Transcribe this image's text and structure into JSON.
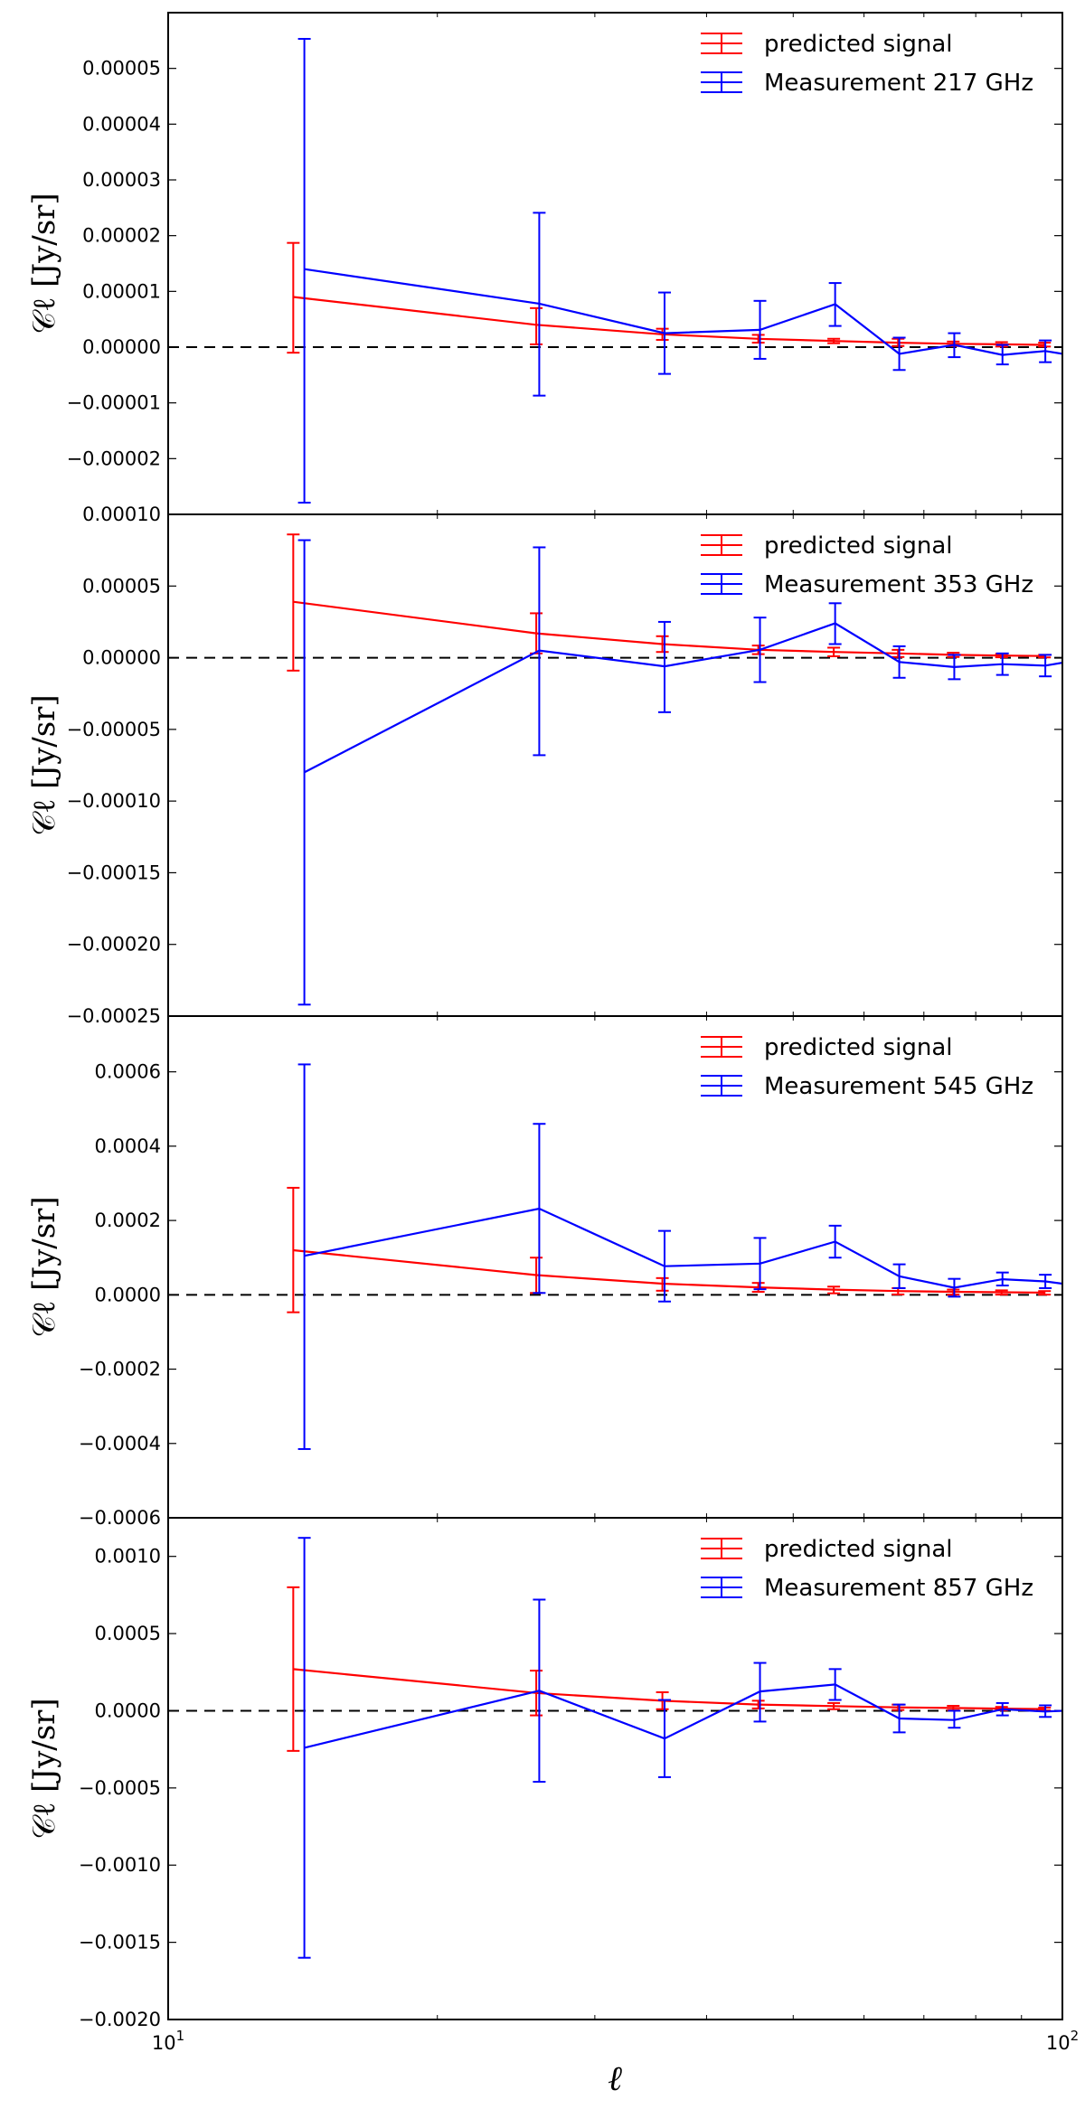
{
  "figure": {
    "xlabel": "ℓ",
    "xscale": "log",
    "xlim": [
      10,
      100
    ],
    "x_tick_labels": [
      {
        "base": "10",
        "exp": "1",
        "value": 10
      },
      {
        "base": "10",
        "exp": "2",
        "value": 100
      }
    ],
    "colors": {
      "predicted": "#ff0000",
      "measurement": "#0000ff",
      "zero_line": "#000000"
    }
  },
  "chart_data": [
    {
      "type": "line",
      "title": "",
      "ylabel": "𝒞ℓ [Jy/sr]",
      "ylim": [
        -3e-05,
        6e-05
      ],
      "y_ticks": [
        -2e-05,
        -1e-05,
        0.0,
        1e-05,
        2e-05,
        3e-05,
        4e-05,
        5e-05
      ],
      "y_tick_labels": [
        "−0.00002",
        "−0.00001",
        "0.00000",
        "0.00001",
        "0.00002",
        "0.00003",
        "0.00004",
        "0.00005"
      ],
      "bottom_tick_label": "0.00010",
      "legend": [
        "predicted signal",
        "Measurement 217 GHz"
      ],
      "legend_position": "top-right",
      "series": [
        {
          "name": "predicted signal",
          "x": [
            13.8,
            25.8,
            35.7,
            45.7,
            55.5,
            65.5,
            75.5,
            85.5,
            95.5
          ],
          "values": [
            9e-06,
            4e-06,
            2.3e-06,
            1.5e-06,
            1.1e-06,
            8e-07,
            6e-07,
            5e-07,
            4e-07
          ],
          "err_low": [
            -1e-06,
            5e-07,
            1.3e-06,
            8e-07,
            7e-07,
            2e-07,
            2e-07,
            1e-07,
            1e-07
          ],
          "err_high": [
            1.87e-05,
            7e-06,
            3.3e-06,
            2.2e-06,
            1.5e-06,
            1.5e-06,
            1e-06,
            9e-07,
            8e-07
          ]
        },
        {
          "name": "Measurement 217 GHz",
          "x": [
            14.2,
            26.0,
            35.9,
            45.9,
            55.7,
            65.7,
            75.7,
            85.7,
            95.7,
            100
          ],
          "values": [
            1.4e-05,
            7.8e-06,
            2.5e-06,
            3.1e-06,
            7.7e-06,
            -1.2e-06,
            4e-07,
            -1.4e-06,
            -7e-07,
            -1.2e-06
          ],
          "err_low": [
            -2.79e-05,
            -8.7e-06,
            -4.8e-06,
            -2.1e-06,
            3.8e-06,
            -4.1e-06,
            -1.8e-06,
            -3.1e-06,
            -2.7e-06,
            null
          ],
          "err_high": [
            5.53e-05,
            2.41e-05,
            9.8e-06,
            8.3e-06,
            1.15e-05,
            1.7e-06,
            2.5e-06,
            4e-07,
            1.2e-06,
            null
          ]
        }
      ]
    },
    {
      "type": "line",
      "title": "",
      "ylabel": "𝒞ℓ [Jy/sr]",
      "ylim": [
        -0.00025,
        0.0001
      ],
      "y_ticks": [
        -0.00025,
        -0.0002,
        -0.00015,
        -0.0001,
        -5e-05,
        0.0,
        5e-05
      ],
      "y_tick_labels": [
        "−0.00025",
        "−0.00020",
        "−0.00015",
        "−0.00010",
        "−0.00005",
        "0.00000",
        "0.00005"
      ],
      "legend": [
        "predicted signal",
        "Measurement 353 GHz"
      ],
      "legend_position": "top-right",
      "series": [
        {
          "name": "predicted signal",
          "x": [
            13.8,
            25.8,
            35.7,
            45.7,
            55.5,
            65.5,
            75.5,
            85.5,
            95.5
          ],
          "values": [
            3.9e-05,
            1.7e-05,
            9.5e-06,
            5.5e-06,
            4e-06,
            3e-06,
            2e-06,
            1.5e-06,
            1.2e-06
          ],
          "err_low": [
            -9e-06,
            3e-06,
            4e-06,
            2.5e-06,
            1e-06,
            5e-07,
            5e-07,
            3e-07,
            2e-07
          ],
          "err_high": [
            8.6e-05,
            3.1e-05,
            1.5e-05,
            8.5e-06,
            7e-06,
            5.5e-06,
            3.5e-06,
            2.7e-06,
            2e-06
          ]
        },
        {
          "name": "Measurement 353 GHz",
          "x": [
            14.2,
            26.0,
            35.9,
            45.9,
            55.7,
            65.7,
            75.7,
            85.7,
            95.7,
            100
          ],
          "values": [
            -8e-05,
            5e-06,
            -6e-06,
            5.5e-06,
            2.4e-05,
            -3e-06,
            -6.5e-06,
            -4.5e-06,
            -5.5e-06,
            -3.5e-06
          ],
          "err_low": [
            -0.000242,
            -6.8e-05,
            -3.8e-05,
            -1.7e-05,
            9.5e-06,
            -1.4e-05,
            -1.5e-05,
            -1.2e-05,
            -1.3e-05,
            null
          ],
          "err_high": [
            8.2e-05,
            7.7e-05,
            2.5e-05,
            2.8e-05,
            3.8e-05,
            8e-06,
            2e-06,
            3e-06,
            2e-06,
            null
          ]
        }
      ]
    },
    {
      "type": "line",
      "title": "",
      "ylabel": "𝒞ℓ [Jy/sr]",
      "ylim": [
        -0.0006,
        0.00075
      ],
      "y_ticks": [
        -0.0006,
        -0.0004,
        -0.0002,
        0.0,
        0.0002,
        0.0004,
        0.0006
      ],
      "y_tick_labels": [
        "−0.0006",
        "−0.0004",
        "−0.0002",
        "0.0000",
        "0.0002",
        "0.0004",
        "0.0006"
      ],
      "legend": [
        "predicted signal",
        "Measurement 545 GHz"
      ],
      "legend_position": "top-right",
      "series": [
        {
          "name": "predicted signal",
          "x": [
            13.8,
            25.8,
            35.7,
            45.7,
            55.5,
            65.5,
            75.5,
            85.5,
            95.5
          ],
          "values": [
            0.00012,
            5.3e-05,
            3e-05,
            2e-05,
            1.4e-05,
            1e-05,
            8e-06,
            7e-06,
            6e-06
          ],
          "err_low": [
            -4.7e-05,
            5e-06,
            1.1e-05,
            8e-06,
            4e-06,
            1e-06,
            5e-07,
            5e-07,
            5e-07
          ],
          "err_high": [
            0.000288,
            0.0001,
            4.5e-05,
            3.2e-05,
            2.2e-05,
            1.8e-05,
            1.4e-05,
            1.2e-05,
            1e-05
          ]
        },
        {
          "name": "Measurement 545 GHz",
          "x": [
            14.2,
            26.0,
            35.9,
            45.9,
            55.7,
            65.7,
            75.7,
            85.7,
            95.7,
            100
          ],
          "values": [
            0.000105,
            0.000232,
            7.7e-05,
            8.4e-05,
            0.000143,
            5e-05,
            1.9e-05,
            4.2e-05,
            3.6e-05,
            3e-05
          ],
          "err_low": [
            -0.000415,
            5e-06,
            -1.8e-05,
            1.5e-05,
            0.0001,
            1.8e-05,
            -5e-06,
            2.5e-05,
            1.8e-05,
            null
          ],
          "err_high": [
            0.00062,
            0.00046,
            0.000172,
            0.000153,
            0.000186,
            8.2e-05,
            4.3e-05,
            6e-05,
            5.4e-05,
            null
          ]
        }
      ]
    },
    {
      "type": "line",
      "title": "",
      "ylabel": "𝒞ℓ [Jy/sr]",
      "ylim": [
        -0.002,
        0.00125
      ],
      "y_ticks": [
        -0.002,
        -0.0015,
        -0.001,
        -0.0005,
        0.0,
        0.0005,
        0.001
      ],
      "y_tick_labels": [
        "−0.0020",
        "−0.0015",
        "−0.0010",
        "−0.0005",
        "0.0000",
        "0.0005",
        "0.0010"
      ],
      "legend": [
        "predicted signal",
        "Measurement 857 GHz"
      ],
      "legend_position": "top-right",
      "series": [
        {
          "name": "predicted signal",
          "x": [
            13.8,
            25.8,
            35.7,
            45.7,
            55.5,
            65.5,
            75.5,
            85.5,
            95.5
          ],
          "values": [
            0.00027,
            0.000115,
            6.5e-05,
            4e-05,
            3e-05,
            2.2e-05,
            1.8e-05,
            1.4e-05,
            1.1e-05
          ],
          "err_low": [
            -0.00026,
            -3e-05,
            1e-05,
            1.5e-05,
            1e-05,
            5e-06,
            4e-06,
            3e-06,
            2e-06
          ],
          "err_high": [
            0.0008,
            0.00026,
            0.00012,
            6.5e-05,
            5e-05,
            4e-05,
            3.2e-05,
            2.5e-05,
            2e-05
          ]
        },
        {
          "name": "Measurement 857 GHz",
          "x": [
            14.2,
            26.0,
            35.9,
            45.9,
            55.7,
            65.7,
            75.7,
            85.7,
            95.7,
            100
          ],
          "values": [
            -0.00024,
            0.00013,
            -0.00018,
            0.000125,
            0.00017,
            -5e-05,
            -6e-05,
            1e-05,
            -5e-06,
            0.0
          ],
          "err_low": [
            -0.0016,
            -0.00046,
            -0.00043,
            -7e-05,
            7e-05,
            -0.00014,
            -0.00011,
            -3e-05,
            -4e-05,
            null
          ],
          "err_high": [
            0.00112,
            0.00072,
            7e-05,
            0.00031,
            0.00027,
            4e-05,
            0.0,
            5e-05,
            3.5e-05,
            null
          ]
        }
      ]
    }
  ]
}
